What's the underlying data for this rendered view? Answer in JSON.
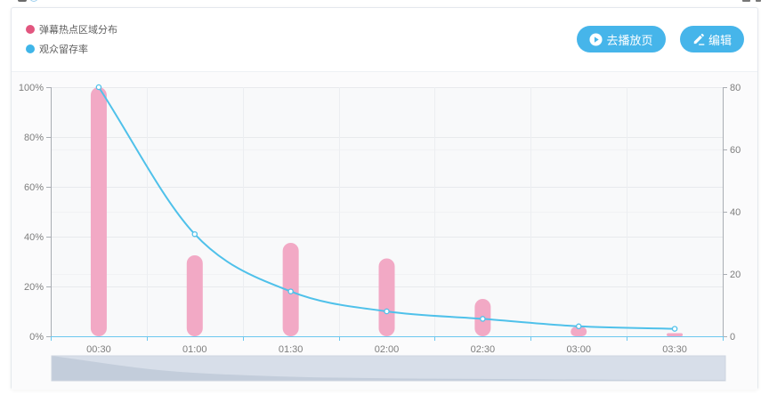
{
  "colors": {
    "accent": "#46b5ea"
  },
  "header": {
    "buttons": [
      {
        "label": "去播放页",
        "icon": "play-circle-icon"
      },
      {
        "label": "编辑",
        "icon": "edit-icon"
      }
    ]
  },
  "chart_data": {
    "type": "bar",
    "legend": "top-left",
    "grid": true,
    "categories": [
      "00:30",
      "01:00",
      "01:30",
      "02:00",
      "02:30",
      "03:00",
      "03:30"
    ],
    "series": [
      {
        "name": "弹幕热点区域分布",
        "type": "bar",
        "y_axis": "right",
        "color": "#f2a9c5",
        "legend_color": "#e2567f",
        "values": [
          80,
          26,
          30,
          25,
          12,
          3,
          1
        ]
      },
      {
        "name": "观众留存率",
        "type": "line",
        "smooth": true,
        "y_axis": "left",
        "unit": "%",
        "color": "#4fc1ea",
        "legend_color": "#3fb5e8",
        "values": [
          100,
          41,
          18,
          10,
          7,
          4,
          3
        ]
      }
    ],
    "y_left": {
      "ylim": [
        0,
        100
      ],
      "ticks": [
        "0%",
        "20%",
        "40%",
        "60%",
        "80%",
        "100%"
      ]
    },
    "y_right": {
      "ylim": [
        0,
        80
      ],
      "ticks": [
        "0",
        "20",
        "40",
        "60",
        "80"
      ]
    },
    "datazoom": {
      "start": 0,
      "end": 100
    }
  }
}
